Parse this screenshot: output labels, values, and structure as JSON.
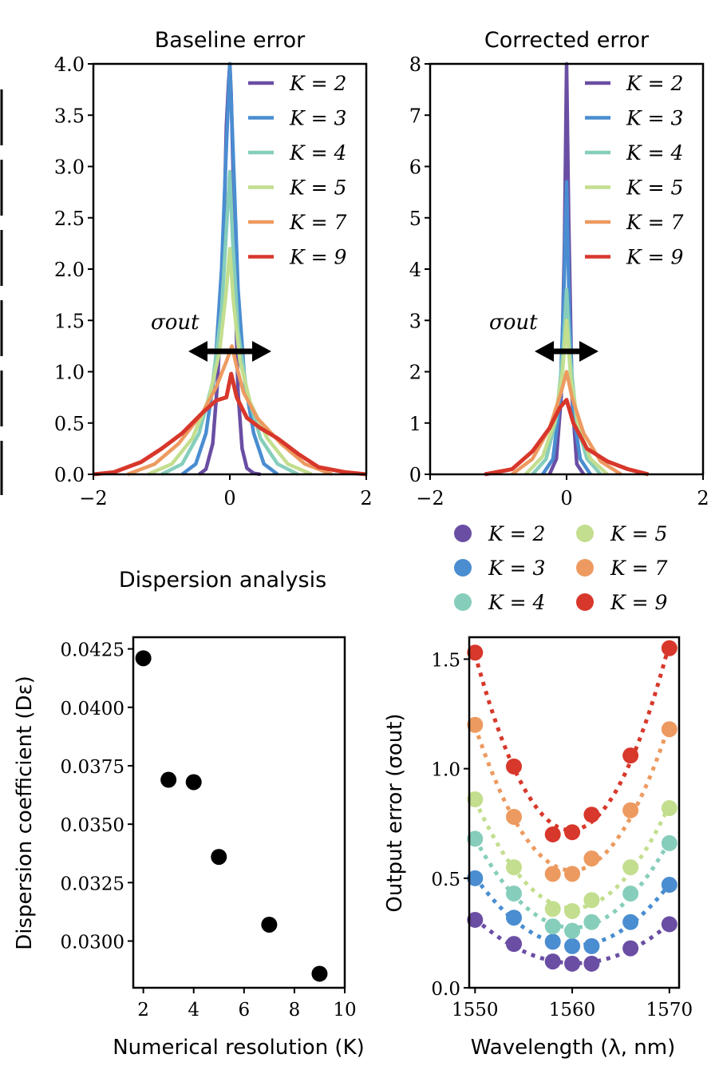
{
  "chart_data": [
    {
      "type": "line",
      "title": "Baseline error",
      "xlabel": "",
      "ylabel": "",
      "xlim": [
        -2,
        2
      ],
      "ylim": [
        0,
        4.0
      ],
      "x_ticks": [
        "−2",
        "0",
        "2"
      ],
      "y_ticks": [
        "0.0",
        "0.5",
        "1.0",
        "1.5",
        "2.0",
        "2.5",
        "3.0",
        "3.5",
        "4.0"
      ],
      "legend_position": "top-right",
      "annotation": "σout",
      "series": [
        {
          "name": "K = 2",
          "color": "#6a4ea3",
          "x": [
            -0.45,
            -0.35,
            -0.25,
            -0.18,
            -0.12,
            -0.08,
            -0.05,
            -0.02,
            0,
            0.02,
            0.05,
            0.08,
            0.12,
            0.18,
            0.25,
            0.35,
            0.45
          ],
          "y": [
            0,
            0.05,
            0.3,
            0.9,
            1.7,
            2.6,
            3.4,
            3.8,
            4.0,
            3.7,
            2.9,
            1.8,
            0.8,
            0.25,
            0.06,
            0.01,
            0
          ]
        },
        {
          "name": "K = 3",
          "color": "#4a8dd1",
          "x": [
            -0.7,
            -0.5,
            -0.35,
            -0.22,
            -0.12,
            -0.05,
            0,
            0.05,
            0.12,
            0.22,
            0.35,
            0.5,
            0.7
          ],
          "y": [
            0,
            0.1,
            0.4,
            1.0,
            2.0,
            3.2,
            4.0,
            3.1,
            1.8,
            0.9,
            0.4,
            0.1,
            0
          ]
        },
        {
          "name": "K = 4",
          "color": "#86cebb",
          "x": [
            -1.0,
            -0.7,
            -0.45,
            -0.25,
            -0.12,
            -0.04,
            0,
            0.04,
            0.12,
            0.25,
            0.45,
            0.7,
            1.0
          ],
          "y": [
            0,
            0.1,
            0.4,
            0.9,
            1.6,
            2.5,
            2.95,
            2.3,
            1.4,
            0.8,
            0.35,
            0.1,
            0
          ]
        },
        {
          "name": "K = 5",
          "color": "#c3de8e",
          "x": [
            -1.2,
            -0.85,
            -0.55,
            -0.3,
            -0.15,
            -0.05,
            0,
            0.05,
            0.15,
            0.3,
            0.55,
            0.85,
            1.2
          ],
          "y": [
            0,
            0.1,
            0.35,
            0.75,
            1.2,
            1.8,
            2.2,
            1.7,
            1.1,
            0.7,
            0.35,
            0.1,
            0
          ]
        },
        {
          "name": "K = 7",
          "color": "#ed9a60",
          "x": [
            -1.5,
            -1.1,
            -0.75,
            -0.4,
            -0.2,
            -0.05,
            0.03,
            0.1,
            0.2,
            0.4,
            0.75,
            1.1,
            1.5
          ],
          "y": [
            0,
            0.1,
            0.3,
            0.6,
            0.85,
            1.1,
            1.25,
            1.05,
            0.8,
            0.55,
            0.3,
            0.1,
            0
          ]
        },
        {
          "name": "K = 9",
          "color": "#d8372b",
          "x": [
            -2,
            -1.7,
            -1.3,
            -1.0,
            -0.7,
            -0.4,
            -0.2,
            -0.05,
            0.02,
            0.1,
            0.25,
            0.45,
            0.7,
            1.0,
            1.3,
            1.7,
            2
          ],
          "y": [
            0,
            0.02,
            0.12,
            0.25,
            0.4,
            0.6,
            0.72,
            0.75,
            0.98,
            0.75,
            0.55,
            0.45,
            0.35,
            0.2,
            0.07,
            0.02,
            0
          ]
        }
      ]
    },
    {
      "type": "line",
      "title": "Corrected  error",
      "xlabel": "",
      "ylabel": "",
      "xlim": [
        -2,
        2
      ],
      "ylim": [
        0,
        8
      ],
      "x_ticks": [
        "−2",
        "0",
        "2"
      ],
      "y_ticks": [
        "0",
        "1",
        "2",
        "3",
        "4",
        "5",
        "6",
        "7",
        "8"
      ],
      "legend_position": "top-right",
      "annotation": "σout",
      "series": [
        {
          "name": "K = 2",
          "color": "#6a4ea3",
          "x": [
            -0.25,
            -0.15,
            -0.08,
            -0.03,
            0,
            0.03,
            0.08,
            0.15,
            0.25
          ],
          "y": [
            0,
            0.3,
            1.5,
            4.5,
            8.0,
            5.0,
            1.5,
            0.2,
            0
          ]
        },
        {
          "name": "K = 3",
          "color": "#4a8dd1",
          "x": [
            -0.35,
            -0.2,
            -0.1,
            -0.04,
            0,
            0.04,
            0.1,
            0.2,
            0.35
          ],
          "y": [
            0,
            0.3,
            1.4,
            3.5,
            5.7,
            3.2,
            1.2,
            0.3,
            0
          ]
        },
        {
          "name": "K = 4",
          "color": "#86cebb",
          "x": [
            -0.5,
            -0.3,
            -0.15,
            -0.05,
            0,
            0.05,
            0.15,
            0.3,
            0.5
          ],
          "y": [
            0,
            0.3,
            1.1,
            2.4,
            3.6,
            2.3,
            1.0,
            0.3,
            0
          ]
        },
        {
          "name": "K = 5",
          "color": "#c3de8e",
          "x": [
            -0.6,
            -0.35,
            -0.18,
            -0.06,
            0,
            0.06,
            0.18,
            0.35,
            0.6
          ],
          "y": [
            0,
            0.35,
            1.0,
            2.0,
            3.0,
            1.9,
            0.9,
            0.3,
            0
          ]
        },
        {
          "name": "K = 7",
          "color": "#ed9a60",
          "x": [
            -0.8,
            -0.5,
            -0.25,
            -0.08,
            0,
            0.08,
            0.25,
            0.5,
            0.8
          ],
          "y": [
            0,
            0.3,
            0.9,
            1.6,
            2.0,
            1.5,
            0.8,
            0.25,
            0
          ]
        },
        {
          "name": "K = 9",
          "color": "#d8372b",
          "x": [
            -1.2,
            -0.8,
            -0.5,
            -0.25,
            -0.1,
            0,
            0.1,
            0.3,
            0.6,
            0.9,
            1.2
          ],
          "y": [
            0,
            0.1,
            0.45,
            0.9,
            1.3,
            1.45,
            1.0,
            0.5,
            0.25,
            0.1,
            0
          ]
        }
      ]
    },
    {
      "type": "scatter",
      "title": "Dispersion analysis",
      "xlabel": "Numerical resolution (K)",
      "ylabel": "Dispersion coefficient (Dε)",
      "xlim": [
        1.6,
        10
      ],
      "ylim": [
        0.028,
        0.043
      ],
      "x_ticks": [
        "2",
        "4",
        "6",
        "8",
        "10"
      ],
      "y_ticks": [
        "0.0300",
        "0.0325",
        "0.0350",
        "0.0375",
        "0.0400",
        "0.0425"
      ],
      "marker_color": "#000000",
      "x": [
        2,
        3,
        4,
        5,
        7,
        9
      ],
      "y": [
        0.0421,
        0.0369,
        0.0368,
        0.0336,
        0.0307,
        0.0286
      ]
    },
    {
      "type": "scatter",
      "title": "",
      "xlabel": "Wavelength (λ, nm)",
      "ylabel": "Output error (σout)",
      "xlim": [
        1549.4,
        1571.0
      ],
      "ylim": [
        0.0,
        1.6
      ],
      "x_ticks": [
        "1550",
        "1560",
        "1570"
      ],
      "y_ticks": [
        "0.0",
        "0.5",
        "1.0",
        "1.5"
      ],
      "legend_position": "above",
      "x": [
        1550,
        1554,
        1558,
        1560,
        1562,
        1566,
        1570
      ],
      "series": [
        {
          "name": "K = 2",
          "color": "#6a4ea3",
          "y": [
            0.31,
            0.2,
            0.12,
            0.11,
            0.11,
            0.18,
            0.29
          ]
        },
        {
          "name": "K = 3",
          "color": "#4a8dd1",
          "y": [
            0.5,
            0.32,
            0.21,
            0.19,
            0.19,
            0.3,
            0.47
          ]
        },
        {
          "name": "K = 4",
          "color": "#86cebb",
          "y": [
            0.68,
            0.43,
            0.28,
            0.26,
            0.3,
            0.43,
            0.66
          ]
        },
        {
          "name": "K = 5",
          "color": "#c3de8e",
          "y": [
            0.86,
            0.55,
            0.36,
            0.35,
            0.4,
            0.55,
            0.82
          ]
        },
        {
          "name": "K = 7",
          "color": "#ed9a60",
          "y": [
            1.2,
            0.78,
            0.52,
            0.52,
            0.59,
            0.81,
            1.18
          ]
        },
        {
          "name": "K = 9",
          "color": "#d8372b",
          "y": [
            1.53,
            1.01,
            0.7,
            0.71,
            0.79,
            1.06,
            1.55
          ]
        }
      ]
    }
  ]
}
